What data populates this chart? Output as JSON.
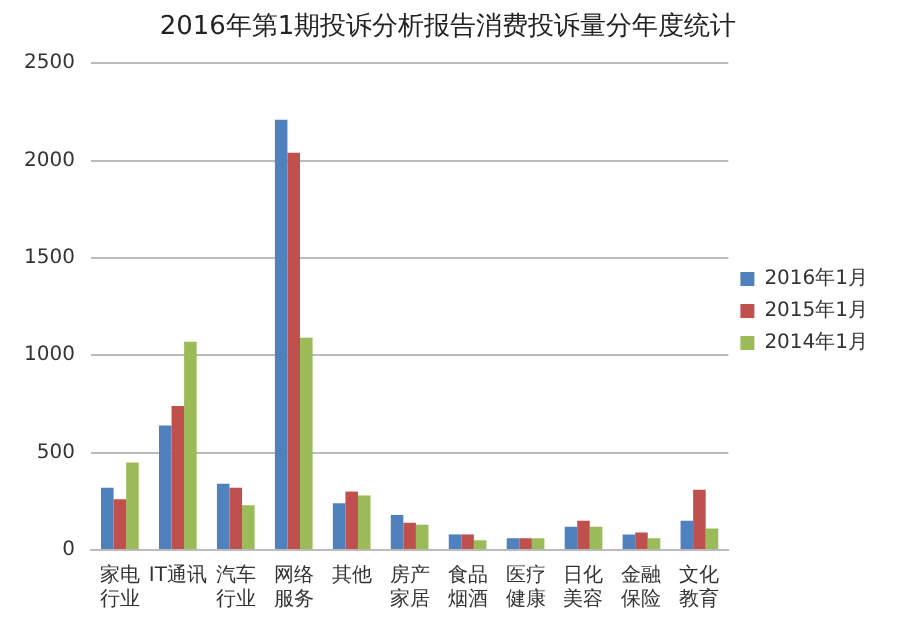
{
  "chart_data": {
    "type": "bar",
    "title": "2016年第1期投诉分析报告消费投诉量分年度统计",
    "categories": [
      "家电行业",
      "IT通讯",
      "汽车行业",
      "网络服务",
      "其他",
      "房产家居",
      "食品烟酒",
      "医疗健康",
      "日化美容",
      "金融保险",
      "文化教育"
    ],
    "series": [
      {
        "name": "2016年1月",
        "color": "#4f81bd",
        "values": [
          320,
          640,
          340,
          2210,
          240,
          180,
          80,
          60,
          120,
          80,
          150
        ]
      },
      {
        "name": "2015年1月",
        "color": "#c0504d",
        "values": [
          260,
          740,
          320,
          2040,
          300,
          140,
          80,
          60,
          150,
          90,
          310
        ]
      },
      {
        "name": "2014年1月",
        "color": "#9bbb59",
        "values": [
          450,
          1070,
          230,
          1090,
          280,
          130,
          50,
          60,
          120,
          60,
          110
        ]
      }
    ],
    "ylim": [
      0,
      2500
    ],
    "yticks": [
      0,
      500,
      1000,
      1500,
      2000,
      2500
    ],
    "grid": "y",
    "legend": "right"
  }
}
